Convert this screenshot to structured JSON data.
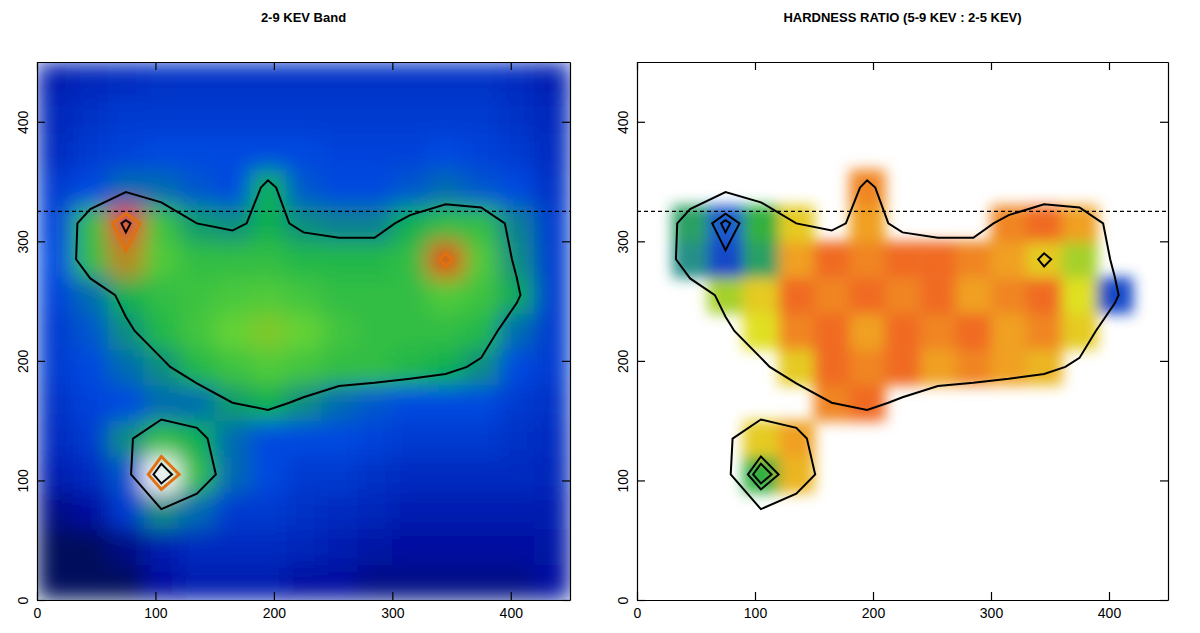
{
  "chart_data": [
    {
      "type": "heatmap",
      "title": "2-9 KEV Band",
      "xlim": [
        0,
        450
      ],
      "ylim": [
        0,
        450
      ],
      "xticks": [
        0,
        100,
        200,
        300,
        400
      ],
      "yticks": [
        0,
        100,
        200,
        300,
        400
      ],
      "x": [
        15,
        45,
        75,
        105,
        135,
        165,
        195,
        225,
        255,
        285,
        315,
        345,
        375,
        405,
        435
      ],
      "y": [
        15,
        45,
        75,
        105,
        135,
        165,
        195,
        225,
        255,
        285,
        315,
        345,
        375,
        405,
        435
      ],
      "zlim": [
        0,
        10
      ],
      "z": [
        [
          0.5,
          0.5,
          0.5,
          1,
          1.5,
          1.5,
          1.5,
          1,
          1,
          0.8,
          0.8,
          0.8,
          0.8,
          0.8,
          1
        ],
        [
          0.5,
          0.5,
          0.8,
          1.5,
          2,
          2,
          2,
          1.8,
          1.5,
          1.2,
          1,
          1,
          1,
          1,
          1.2
        ],
        [
          0.8,
          1,
          2.5,
          4,
          3.5,
          2.5,
          2.5,
          2.2,
          2,
          1.8,
          1.5,
          1.5,
          1.5,
          1.5,
          1.5
        ],
        [
          1.5,
          2,
          3.2,
          10,
          5,
          3.5,
          3,
          2.5,
          2.5,
          2.2,
          2,
          2,
          2,
          2,
          1.8
        ],
        [
          2,
          2.5,
          4,
          5,
          4.5,
          3.5,
          3,
          3,
          3,
          2.8,
          2.5,
          2.5,
          2.5,
          2.2,
          2
        ],
        [
          2.2,
          2.8,
          3,
          3.5,
          3.5,
          4.2,
          4.5,
          4,
          3.5,
          3.2,
          3,
          3,
          3,
          2.5,
          2.2
        ],
        [
          2.5,
          3,
          3.5,
          4,
          4.8,
          5.2,
          5.5,
          5.3,
          5,
          5,
          4.8,
          4.5,
          4,
          3,
          2.5
        ],
        [
          2.5,
          3.2,
          4,
          4.8,
          5.3,
          5.8,
          6.2,
          5.8,
          5.3,
          5,
          5,
          5,
          4.8,
          3.5,
          2.5
        ],
        [
          2.8,
          3.5,
          4.5,
          5,
          5.2,
          5.4,
          5.5,
          5.3,
          5,
          5,
          5,
          5.5,
          5.2,
          4.4,
          2.5
        ],
        [
          3,
          5,
          7,
          5.5,
          5,
          5,
          5,
          4.8,
          4.8,
          4.8,
          5,
          8,
          5.5,
          4,
          2.5
        ],
        [
          2.8,
          5,
          9,
          5.2,
          4.2,
          4,
          4.5,
          4,
          3.8,
          3.8,
          4.5,
          5,
          5,
          3.8,
          2.5
        ],
        [
          2.5,
          3,
          3.5,
          3.5,
          3.2,
          3,
          4.5,
          3.2,
          3,
          3,
          3.2,
          3.5,
          3.2,
          3,
          2.2
        ],
        [
          2,
          2.5,
          2.8,
          3,
          3,
          3,
          3,
          3,
          2.8,
          2.8,
          2.8,
          3,
          2.8,
          2.5,
          2
        ],
        [
          1.8,
          2.2,
          2.5,
          2.5,
          2.5,
          2.5,
          2.5,
          2.5,
          2.5,
          2.5,
          2.5,
          2.5,
          2.5,
          2.2,
          1.8
        ],
        [
          1.5,
          1.8,
          2,
          2.2,
          2.2,
          2.2,
          2.2,
          2.2,
          2.2,
          2.2,
          2.2,
          2.2,
          2.2,
          2,
          1.5
        ]
      ],
      "contours": [
        {
          "level": 4.2,
          "color": "#000000"
        },
        {
          "level": 7.5,
          "color": "#e07010"
        },
        {
          "level": 8.5,
          "color": "#000000"
        }
      ],
      "dashed_line_y": 325
    },
    {
      "type": "heatmap",
      "title": "HARDNESS RATIO (5-9 KEV : 2-5 KEV)",
      "xlim": [
        0,
        450
      ],
      "ylim": [
        0,
        450
      ],
      "xticks": [
        0,
        100,
        200,
        300,
        400
      ],
      "yticks": [
        0,
        100,
        200,
        300,
        400
      ],
      "x": [
        15,
        45,
        75,
        105,
        135,
        165,
        195,
        225,
        255,
        285,
        315,
        345,
        375,
        405,
        435
      ],
      "y": [
        15,
        45,
        75,
        105,
        135,
        165,
        195,
        225,
        255,
        285,
        315,
        345,
        375,
        405,
        435
      ],
      "zlim": [
        0,
        1
      ],
      "z": [
        [
          null,
          null,
          null,
          null,
          null,
          null,
          null,
          null,
          null,
          null,
          null,
          null,
          null,
          null,
          null
        ],
        [
          null,
          null,
          null,
          null,
          null,
          null,
          null,
          null,
          null,
          null,
          null,
          null,
          null,
          null,
          null
        ],
        [
          null,
          null,
          null,
          null,
          null,
          null,
          null,
          null,
          null,
          null,
          null,
          null,
          null,
          null,
          null
        ],
        [
          null,
          null,
          null,
          0.4,
          0.65,
          null,
          null,
          null,
          null,
          null,
          null,
          null,
          null,
          null,
          null
        ],
        [
          null,
          null,
          null,
          0.6,
          0.7,
          null,
          null,
          null,
          null,
          null,
          null,
          null,
          null,
          null,
          null
        ],
        [
          null,
          null,
          null,
          null,
          null,
          0.75,
          0.8,
          null,
          null,
          null,
          null,
          null,
          null,
          null,
          null
        ],
        [
          null,
          null,
          null,
          null,
          0.6,
          0.8,
          0.75,
          0.8,
          0.7,
          0.75,
          0.7,
          0.65,
          null,
          null,
          null
        ],
        [
          null,
          null,
          null,
          0.55,
          0.75,
          0.8,
          0.7,
          0.8,
          0.75,
          0.8,
          0.7,
          0.75,
          0.6,
          null,
          null
        ],
        [
          null,
          null,
          0.5,
          0.6,
          0.8,
          0.75,
          0.8,
          0.75,
          0.8,
          0.7,
          0.75,
          0.8,
          0.55,
          0.1,
          null
        ],
        [
          null,
          0.3,
          0.1,
          0.35,
          0.7,
          0.8,
          0.75,
          0.8,
          0.8,
          0.75,
          0.7,
          0.6,
          0.5,
          null,
          null
        ],
        [
          null,
          0.35,
          0.15,
          0.4,
          0.6,
          null,
          0.7,
          null,
          null,
          null,
          0.75,
          0.8,
          0.7,
          null,
          null
        ],
        [
          null,
          null,
          null,
          null,
          null,
          null,
          0.75,
          null,
          null,
          null,
          null,
          null,
          null,
          null,
          null
        ],
        [
          null,
          null,
          null,
          null,
          null,
          null,
          null,
          null,
          null,
          null,
          null,
          null,
          null,
          null,
          null
        ],
        [
          null,
          null,
          null,
          null,
          null,
          null,
          null,
          null,
          null,
          null,
          null,
          null,
          null,
          null,
          null
        ],
        [
          null,
          null,
          null,
          null,
          null,
          null,
          null,
          null,
          null,
          null,
          null,
          null,
          null,
          null,
          null
        ]
      ],
      "dashed_line_y": 325
    }
  ]
}
